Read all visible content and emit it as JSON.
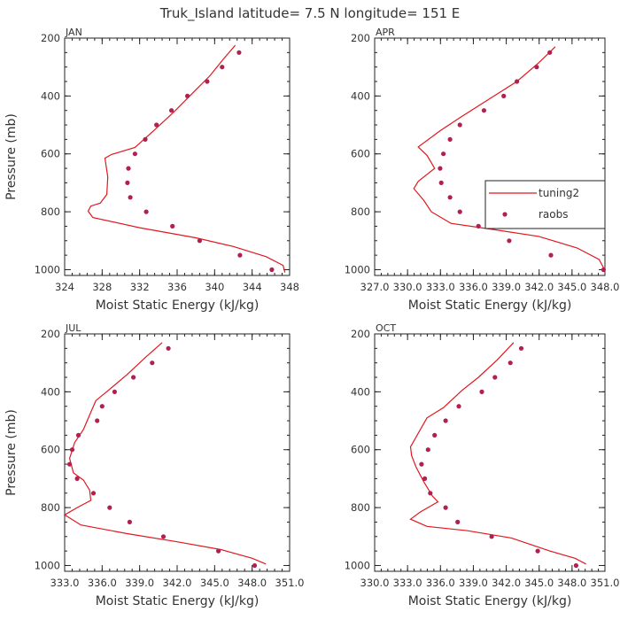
{
  "figure_title": "Truk_Island  latitude= 7.5 N longitude= 151 E",
  "colors": {
    "model": "#e0181f",
    "obs": "#b02050",
    "axis": "#222222"
  },
  "chart_data": [
    {
      "type": "line",
      "panel_title": "JAN",
      "xlabel": "Moist Static Energy (kJ/kg)",
      "ylabel": "Pressure (mb)",
      "xlim": [
        324,
        348
      ],
      "ylim": [
        1020,
        200
      ],
      "xticks": [
        324,
        328,
        332,
        336,
        340,
        344,
        348
      ],
      "xtick_labels": [
        "324",
        "328",
        "332",
        "336",
        "340",
        "344",
        "348"
      ],
      "yticks": [
        200,
        400,
        600,
        800,
        1000
      ],
      "ytick_labels": [
        "200",
        "400",
        "600",
        "800",
        "1000"
      ],
      "series": [
        {
          "name": "tuning2",
          "kind": "line",
          "points": [
            [
              342.2,
              225
            ],
            [
              341.0,
              270
            ],
            [
              339.5,
              330
            ],
            [
              337.5,
              395
            ],
            [
              335.5,
              460
            ],
            [
              333.5,
              520
            ],
            [
              331.5,
              578
            ],
            [
              329.0,
              602
            ],
            [
              328.3,
              615
            ],
            [
              328.6,
              680
            ],
            [
              328.5,
              740
            ],
            [
              327.8,
              770
            ],
            [
              326.8,
              780
            ],
            [
              326.5,
              798
            ],
            [
              327.0,
              820
            ],
            [
              332.0,
              855
            ],
            [
              338.0,
              890
            ],
            [
              342.0,
              920
            ],
            [
              345.5,
              955
            ],
            [
              347.3,
              985
            ],
            [
              347.5,
              1010
            ]
          ]
        },
        {
          "name": "raobs",
          "kind": "markers",
          "points": [
            [
              342.6,
              250
            ],
            [
              340.8,
              300
            ],
            [
              339.2,
              350
            ],
            [
              337.1,
              400
            ],
            [
              335.4,
              450
            ],
            [
              333.8,
              500
            ],
            [
              332.6,
              550
            ],
            [
              331.5,
              600
            ],
            [
              330.8,
              650
            ],
            [
              330.7,
              700
            ],
            [
              331.0,
              750
            ],
            [
              332.7,
              800
            ],
            [
              335.5,
              850
            ],
            [
              338.4,
              900
            ],
            [
              342.7,
              950
            ],
            [
              346.1,
              1000
            ]
          ]
        }
      ]
    },
    {
      "type": "line",
      "panel_title": "APR",
      "xlabel": "Moist Static Energy (kJ/kg)",
      "ylabel": "",
      "xlim": [
        327.03,
        348.03
      ],
      "ylim": [
        1020,
        200
      ],
      "xticks": [
        327.03,
        330.03,
        333.03,
        336.03,
        339.03,
        342.03,
        345.03,
        348.03
      ],
      "xtick_labels": [
        "327.0",
        "330.0",
        "333.0",
        "336.0",
        "339.0",
        "342.0",
        "345.0",
        "348.0"
      ],
      "yticks": [
        200,
        400,
        600,
        800,
        1000
      ],
      "ytick_labels": [
        "200",
        "400",
        "600",
        "800",
        "1000"
      ],
      "series": [
        {
          "name": "tuning2",
          "kind": "line",
          "points": [
            [
              343.5,
              230
            ],
            [
              342.0,
              285
            ],
            [
              340.0,
              350
            ],
            [
              337.5,
              410
            ],
            [
              334.8,
              475
            ],
            [
              333.0,
              520
            ],
            [
              331.0,
              576
            ],
            [
              331.8,
              605
            ],
            [
              332.5,
              650
            ],
            [
              331.0,
              695
            ],
            [
              330.6,
              720
            ],
            [
              331.5,
              760
            ],
            [
              332.2,
              800
            ],
            [
              334.0,
              840
            ],
            [
              338.0,
              862
            ],
            [
              342.0,
              885
            ],
            [
              345.5,
              925
            ],
            [
              347.5,
              965
            ],
            [
              348.0,
              1000
            ]
          ]
        },
        {
          "name": "raobs",
          "kind": "markers",
          "points": [
            [
              343.0,
              250
            ],
            [
              341.8,
              300
            ],
            [
              340.0,
              350
            ],
            [
              338.8,
              400
            ],
            [
              337.0,
              450
            ],
            [
              334.8,
              500
            ],
            [
              333.9,
              550
            ],
            [
              333.3,
              600
            ],
            [
              333.0,
              650
            ],
            [
              333.1,
              700
            ],
            [
              333.9,
              750
            ],
            [
              334.8,
              800
            ],
            [
              336.5,
              850
            ],
            [
              339.3,
              900
            ],
            [
              343.1,
              950
            ],
            [
              347.9,
              1000
            ]
          ]
        }
      ]
    },
    {
      "type": "line",
      "panel_title": "JUL",
      "xlabel": "Moist Static Energy (kJ/kg)",
      "ylabel": "Pressure (mb)",
      "xlim": [
        333,
        351
      ],
      "ylim": [
        1020,
        200
      ],
      "xticks": [
        333,
        336,
        339,
        342,
        345,
        348,
        351
      ],
      "xtick_labels": [
        "333.0",
        "336.0",
        "339.0",
        "342.0",
        "345.0",
        "348.0",
        "351.0"
      ],
      "yticks": [
        200,
        400,
        600,
        800,
        1000
      ],
      "ytick_labels": [
        "200",
        "400",
        "600",
        "800",
        "1000"
      ],
      "series": [
        {
          "name": "tuning2",
          "kind": "line",
          "points": [
            [
              340.8,
              230
            ],
            [
              339.5,
              280
            ],
            [
              338.0,
              340
            ],
            [
              336.5,
              395
            ],
            [
              335.5,
              430
            ],
            [
              335.2,
              460
            ],
            [
              334.5,
              530
            ],
            [
              333.8,
              575
            ],
            [
              333.4,
              630
            ],
            [
              333.7,
              680
            ],
            [
              334.5,
              705
            ],
            [
              335.0,
              740
            ],
            [
              335.1,
              775
            ],
            [
              334.0,
              800
            ],
            [
              333.0,
              825
            ],
            [
              334.3,
              860
            ],
            [
              338.0,
              890
            ],
            [
              342.0,
              918
            ],
            [
              345.5,
              945
            ],
            [
              348.0,
              975
            ],
            [
              349.1,
              995
            ]
          ]
        },
        {
          "name": "raobs",
          "kind": "markers",
          "points": [
            [
              341.3,
              250
            ],
            [
              340.0,
              300
            ],
            [
              338.5,
              350
            ],
            [
              337.0,
              400
            ],
            [
              336.0,
              450
            ],
            [
              335.6,
              500
            ],
            [
              334.1,
              550
            ],
            [
              333.6,
              600
            ],
            [
              333.4,
              650
            ],
            [
              334.0,
              700
            ],
            [
              335.3,
              750
            ],
            [
              336.6,
              800
            ],
            [
              338.2,
              850
            ],
            [
              340.9,
              900
            ],
            [
              345.3,
              950
            ],
            [
              348.2,
              1000
            ]
          ]
        }
      ]
    },
    {
      "type": "line",
      "panel_title": "OCT",
      "xlabel": "Moist Static Energy (kJ/kg)",
      "ylabel": "",
      "xlim": [
        330.03,
        351.03
      ],
      "ylim": [
        1020,
        200
      ],
      "xticks": [
        330.03,
        333.03,
        336.03,
        339.03,
        342.03,
        345.03,
        348.03,
        351.03
      ],
      "xtick_labels": [
        "330.0",
        "333.0",
        "336.0",
        "339.0",
        "342.0",
        "345.0",
        "348.0",
        "351.0"
      ],
      "yticks": [
        200,
        400,
        600,
        800,
        1000
      ],
      "ytick_labels": [
        "200",
        "400",
        "600",
        "800",
        "1000"
      ],
      "series": [
        {
          "name": "tuning2",
          "kind": "line",
          "points": [
            [
              342.7,
              230
            ],
            [
              341.2,
              290
            ],
            [
              339.5,
              350
            ],
            [
              338.0,
              395
            ],
            [
              336.3,
              455
            ],
            [
              334.8,
              490
            ],
            [
              334.2,
              530
            ],
            [
              333.3,
              590
            ],
            [
              333.4,
              620
            ],
            [
              333.8,
              660
            ],
            [
              334.5,
              710
            ],
            [
              335.3,
              760
            ],
            [
              335.8,
              780
            ],
            [
              334.2,
              815
            ],
            [
              333.3,
              840
            ],
            [
              334.8,
              865
            ],
            [
              338.5,
              880
            ],
            [
              342.5,
              905
            ],
            [
              346.0,
              950
            ],
            [
              348.3,
              975
            ],
            [
              349.3,
              995
            ]
          ]
        },
        {
          "name": "raobs",
          "kind": "markers",
          "points": [
            [
              343.4,
              250
            ],
            [
              342.4,
              300
            ],
            [
              341.0,
              350
            ],
            [
              339.8,
              400
            ],
            [
              337.7,
              450
            ],
            [
              336.5,
              500
            ],
            [
              335.5,
              550
            ],
            [
              334.9,
              600
            ],
            [
              334.3,
              650
            ],
            [
              334.6,
              700
            ],
            [
              335.1,
              750
            ],
            [
              336.5,
              800
            ],
            [
              337.6,
              850
            ],
            [
              340.7,
              900
            ],
            [
              344.9,
              950
            ],
            [
              348.4,
              1000
            ]
          ]
        }
      ]
    }
  ],
  "legend": {
    "panel": 1,
    "entries": [
      "tuning2",
      "raobs"
    ]
  }
}
